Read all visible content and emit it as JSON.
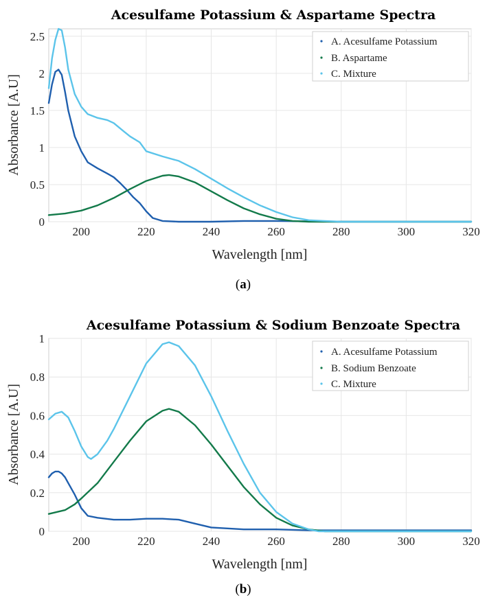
{
  "chart_data": [
    {
      "type": "line",
      "panel_label": "a",
      "title": "Acesulfame Potassium & Aspartame Spectra",
      "xlabel": "Wavelength [nm]",
      "ylabel": "Absorbance [A.U]",
      "xlim": [
        190,
        320
      ],
      "ylim": [
        0,
        2.6
      ],
      "xticks": [
        200,
        220,
        240,
        260,
        280,
        300,
        320
      ],
      "yticks": [
        0,
        0.5,
        1,
        1.5,
        2,
        2.5
      ],
      "xtick_labels": [
        "200",
        "220",
        "240",
        "260",
        "280",
        "300",
        "320"
      ],
      "ytick_labels": [
        "0",
        "0.5",
        "1",
        "1.5",
        "2",
        "2.5"
      ],
      "grid": true,
      "legend_position": "top-right",
      "series": [
        {
          "name": "A. Acesulfame Potassium",
          "color": "#1f5fae",
          "x": [
            190,
            191,
            192,
            193,
            194,
            195,
            196,
            198,
            200,
            202,
            205,
            208,
            210,
            212,
            214,
            216,
            218,
            220,
            222,
            225,
            230,
            240,
            250,
            260,
            280,
            300,
            320
          ],
          "y": [
            1.6,
            1.85,
            2.02,
            2.05,
            1.98,
            1.75,
            1.5,
            1.15,
            0.95,
            0.8,
            0.72,
            0.65,
            0.6,
            0.52,
            0.43,
            0.33,
            0.25,
            0.14,
            0.05,
            0.01,
            0.0,
            0.0,
            0.01,
            0.01,
            0.0,
            0.0,
            0.0
          ]
        },
        {
          "name": "B. Aspartame",
          "color": "#137a4a",
          "x": [
            190,
            195,
            200,
            205,
            210,
            215,
            220,
            225,
            227,
            230,
            235,
            240,
            245,
            250,
            255,
            260,
            265,
            270,
            280,
            300,
            320
          ],
          "y": [
            0.09,
            0.11,
            0.15,
            0.22,
            0.32,
            0.44,
            0.55,
            0.62,
            0.63,
            0.61,
            0.53,
            0.41,
            0.29,
            0.18,
            0.1,
            0.04,
            0.01,
            0.0,
            0.0,
            0.0,
            0.0
          ]
        },
        {
          "name": "C. Mixture",
          "color": "#5bc4ea",
          "x": [
            190,
            191,
            192,
            193,
            194,
            195,
            196,
            198,
            200,
            202,
            205,
            208,
            210,
            213,
            215,
            218,
            220,
            225,
            230,
            235,
            240,
            245,
            250,
            255,
            260,
            265,
            270,
            275,
            280,
            300,
            320
          ],
          "y": [
            1.8,
            2.2,
            2.45,
            2.6,
            2.58,
            2.35,
            2.05,
            1.72,
            1.55,
            1.45,
            1.4,
            1.37,
            1.33,
            1.22,
            1.15,
            1.07,
            0.95,
            0.88,
            0.82,
            0.71,
            0.58,
            0.45,
            0.33,
            0.22,
            0.13,
            0.06,
            0.02,
            0.01,
            0.0,
            0.0,
            0.0
          ]
        }
      ]
    },
    {
      "type": "line",
      "panel_label": "b",
      "title": "Acesulfame Potassium & Sodium Benzoate Spectra",
      "xlabel": "Wavelength [nm]",
      "ylabel": "Absorbance [A.U]",
      "xlim": [
        190,
        320
      ],
      "ylim": [
        0,
        1
      ],
      "xticks": [
        200,
        220,
        240,
        260,
        280,
        300,
        320
      ],
      "yticks": [
        0,
        0.2,
        0.4,
        0.6,
        0.8,
        1
      ],
      "xtick_labels": [
        "200",
        "220",
        "240",
        "260",
        "280",
        "300",
        "320"
      ],
      "ytick_labels": [
        "0",
        "0.2",
        "0.4",
        "0.6",
        "0.8",
        "1"
      ],
      "grid": true,
      "legend_position": "top-right",
      "series": [
        {
          "name": "A. Acesulfame Potassium",
          "color": "#1f5fae",
          "x": [
            190,
            191,
            192,
            193,
            194,
            195,
            196,
            198,
            200,
            202,
            205,
            210,
            215,
            220,
            225,
            230,
            235,
            240,
            250,
            260,
            270,
            280,
            300,
            320
          ],
          "y": [
            0.28,
            0.3,
            0.31,
            0.31,
            0.3,
            0.28,
            0.25,
            0.19,
            0.12,
            0.08,
            0.07,
            0.06,
            0.06,
            0.065,
            0.065,
            0.06,
            0.04,
            0.02,
            0.01,
            0.01,
            0.005,
            0.005,
            0.005,
            0.005
          ]
        },
        {
          "name": "B. Sodium Benzoate",
          "color": "#137a4a",
          "x": [
            190,
            195,
            198,
            200,
            205,
            210,
            215,
            220,
            225,
            227,
            230,
            235,
            240,
            245,
            250,
            255,
            260,
            265,
            270,
            275,
            280,
            300,
            320
          ],
          "y": [
            0.09,
            0.11,
            0.14,
            0.17,
            0.25,
            0.36,
            0.47,
            0.57,
            0.625,
            0.635,
            0.62,
            0.55,
            0.45,
            0.34,
            0.23,
            0.14,
            0.07,
            0.03,
            0.01,
            0.0,
            0.0,
            0.0,
            0.0
          ]
        },
        {
          "name": "C. Mixture",
          "color": "#5bc4ea",
          "x": [
            190,
            192,
            194,
            196,
            198,
            200,
            202,
            203,
            205,
            208,
            210,
            215,
            220,
            225,
            227,
            230,
            235,
            240,
            245,
            250,
            255,
            260,
            265,
            270,
            273,
            280,
            300,
            320
          ],
          "y": [
            0.58,
            0.61,
            0.62,
            0.59,
            0.52,
            0.44,
            0.385,
            0.375,
            0.4,
            0.47,
            0.53,
            0.7,
            0.87,
            0.97,
            0.98,
            0.96,
            0.86,
            0.7,
            0.52,
            0.35,
            0.2,
            0.1,
            0.04,
            0.01,
            0.0,
            0.0,
            0.0,
            0.0
          ]
        }
      ]
    }
  ]
}
